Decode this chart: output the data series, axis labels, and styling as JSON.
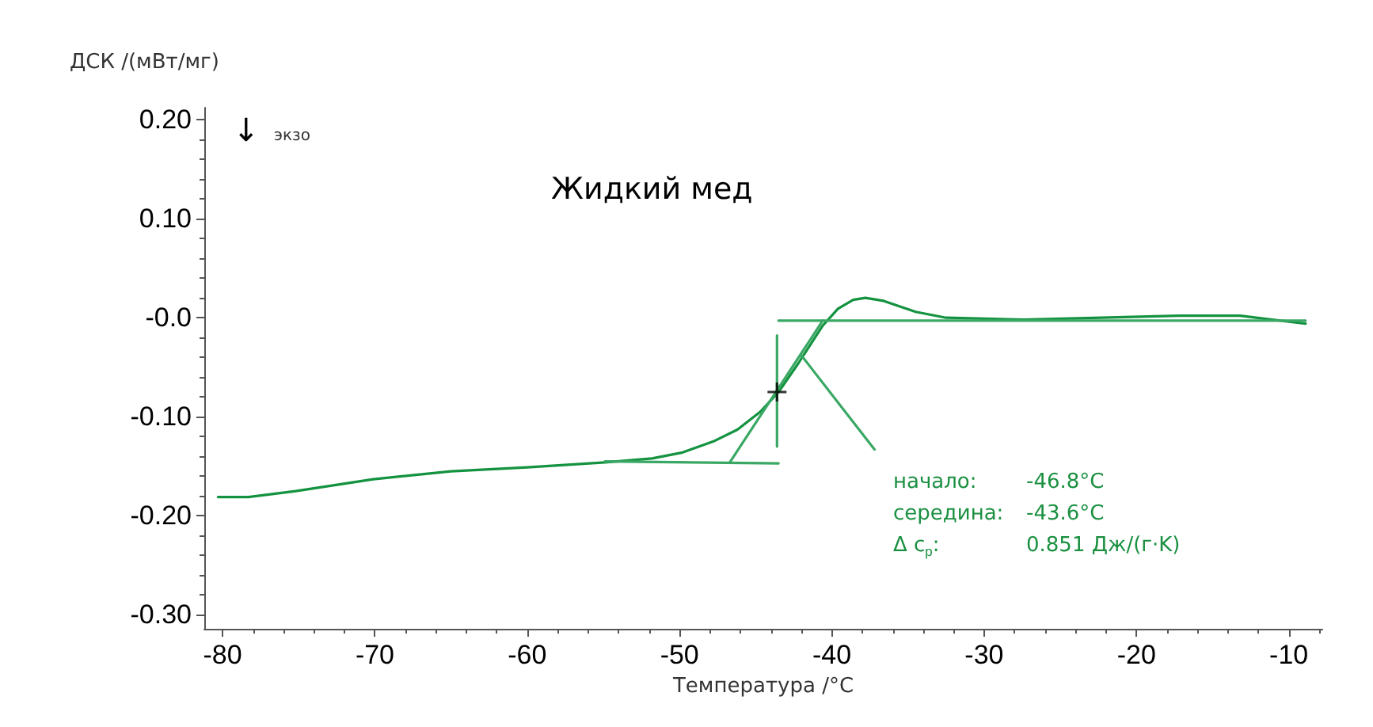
{
  "chart_data": {
    "type": "line",
    "title": "Жидкий мед",
    "xlabel": "Температура /°C",
    "ylabel": "ДСК /(мВт/мг)",
    "xlim": [
      -81.2,
      -7.8
    ],
    "ylim": [
      -0.314,
      0.212
    ],
    "xticks": [
      -80,
      -70,
      -60,
      -50,
      -40,
      -30,
      -20,
      -10
    ],
    "yticks": [
      {
        "value": -0.3,
        "label": "-0.30"
      },
      {
        "value": -0.2,
        "label": "-0.20"
      },
      {
        "value": -0.1,
        "label": "-0.10"
      },
      {
        "value": 0,
        "label": "-0.0"
      },
      {
        "value": 0.1,
        "label": "0.10"
      },
      {
        "value": 0.2,
        "label": "0.20"
      }
    ],
    "marker": "none",
    "line_style": "solid",
    "grid": false,
    "series": [
      {
        "color": "#13923f",
        "x": [
          -80.3,
          -78.3,
          -75.2,
          -70.1,
          -65.0,
          -60.0,
          -54.9,
          -51.8,
          -49.8,
          -47.8,
          -46.2,
          -44.7,
          -43.5,
          -42.2,
          -40.6,
          -39.6,
          -38.6,
          -37.8,
          -36.6,
          -34.5,
          -32.5,
          -27.4,
          -22.3,
          -17.2,
          -13.2,
          -11.1,
          -8.9
        ],
        "values": [
          -0.181,
          -0.181,
          -0.175,
          -0.163,
          -0.155,
          -0.151,
          -0.146,
          -0.142,
          -0.136,
          -0.125,
          -0.113,
          -0.095,
          -0.075,
          -0.046,
          -0.008,
          0.009,
          0.018,
          0.02,
          0.017,
          0.006,
          0.0,
          -0.002,
          0.0,
          0.002,
          0.002,
          -0.002,
          -0.006
        ]
      },
      {
        "color": "#3aa864",
        "x": [
          -54.9,
          -43.5
        ],
        "values": [
          -0.145,
          -0.147
        ]
      },
      {
        "color": "#3aa864",
        "x": [
          -43.5,
          -8.9
        ],
        "values": [
          -0.003,
          -0.003
        ]
      },
      {
        "color": "#3aa864",
        "x": [
          -46.7,
          -40.6
        ],
        "values": [
          -0.146,
          -0.003
        ]
      },
      {
        "color": "#3aa864",
        "x": [
          -43.6,
          -43.6
        ],
        "values": [
          -0.018,
          -0.13
        ]
      },
      {
        "color": "#3aa864",
        "x": [
          -42.0,
          -37.2
        ],
        "values": [
          -0.038,
          -0.133
        ]
      },
      {
        "type": "scatter",
        "marker": "cross",
        "color": "#000000",
        "x": [
          -43.6
        ],
        "values": [
          -0.075
        ]
      }
    ],
    "annotations": [
      "↓",
      "экзо",
      "начало:",
      "-46.8°C",
      "середина:",
      "-43.6°C",
      "Δ c$_{p}$:",
      "0.851 Дж/(г·K)"
    ]
  }
}
